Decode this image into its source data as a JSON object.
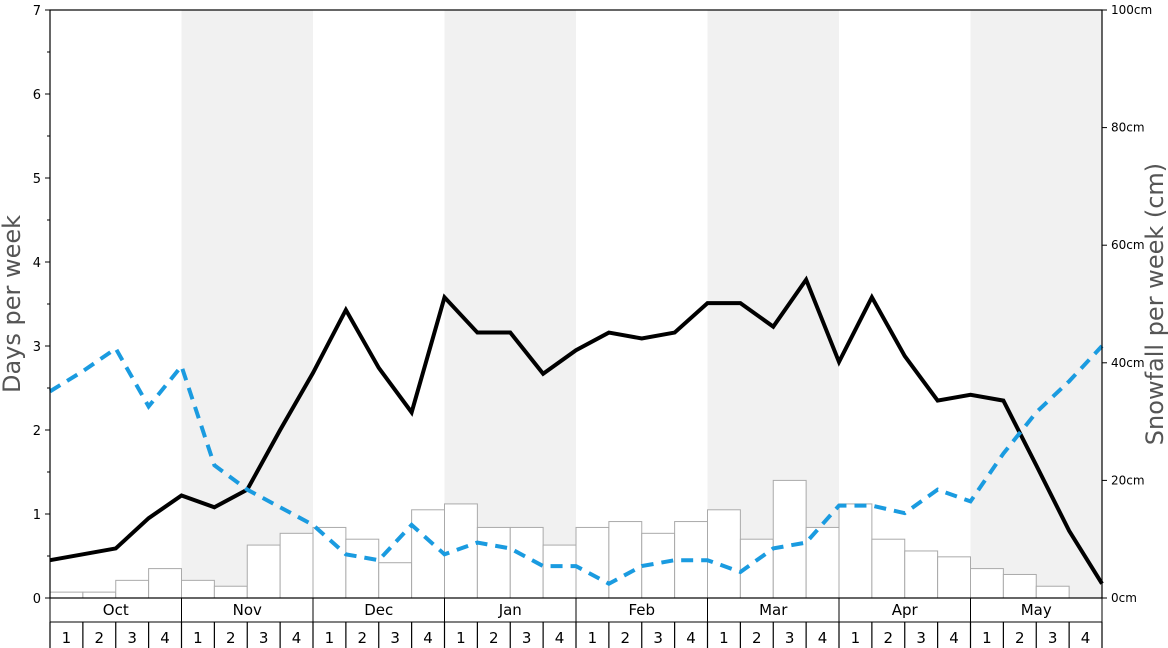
{
  "chart_data": {
    "type": "bar+line",
    "months": [
      "Oct",
      "Nov",
      "Dec",
      "Jan",
      "Feb",
      "Mar",
      "Apr",
      "May"
    ],
    "week_labels": [
      "1",
      "2",
      "3",
      "4"
    ],
    "ylabel_left": "Days per week",
    "ylabel_right": "Snowfall per week (cm)",
    "ylim_left": [
      0,
      7
    ],
    "ylim_right": [
      0,
      100
    ],
    "left_ticks": [
      "0",
      "1",
      "2",
      "3",
      "4",
      "5",
      "6",
      "7"
    ],
    "right_ticks": [
      "0cm",
      "20cm",
      "40cm",
      "60cm",
      "80cm",
      "100cm"
    ],
    "alternate_month_shading": true,
    "shading_color": "#f1f1f1",
    "series": [
      {
        "type": "bar",
        "axis": "right",
        "color": "#ffffff",
        "edge_color": "#aaaaaa",
        "values": [
          1,
          1,
          3,
          5,
          3,
          2,
          9,
          11,
          12,
          10,
          6,
          15,
          16,
          12,
          12,
          9,
          12,
          13,
          11,
          13,
          15,
          10,
          20,
          12,
          16,
          10,
          8,
          7,
          5,
          4,
          2,
          0
        ]
      },
      {
        "type": "line",
        "axis": "left",
        "style": "solid",
        "color": "#000000",
        "values": [
          0.45,
          0.52,
          0.59,
          0.95,
          1.22,
          1.08,
          1.29,
          2.0,
          2.68,
          3.43,
          2.74,
          2.21,
          3.58,
          3.16,
          3.16,
          2.67,
          2.95,
          3.16,
          3.09,
          3.16,
          3.51,
          3.51,
          3.23,
          3.79,
          2.81,
          3.58,
          2.88,
          2.35,
          2.42,
          2.35,
          1.58,
          0.8,
          0.17
        ]
      },
      {
        "type": "line",
        "axis": "left",
        "style": "dashed",
        "color": "#1a9be0",
        "values": [
          2.46,
          2.7,
          2.97,
          2.28,
          2.76,
          1.58,
          1.29,
          1.08,
          0.87,
          0.52,
          0.45,
          0.87,
          0.52,
          0.66,
          0.59,
          0.38,
          0.38,
          0.17,
          0.38,
          0.45,
          0.45,
          0.31,
          0.59,
          0.66,
          1.1,
          1.1,
          1.01,
          1.29,
          1.15,
          1.72,
          2.21,
          2.58,
          3.0
        ]
      }
    ]
  }
}
